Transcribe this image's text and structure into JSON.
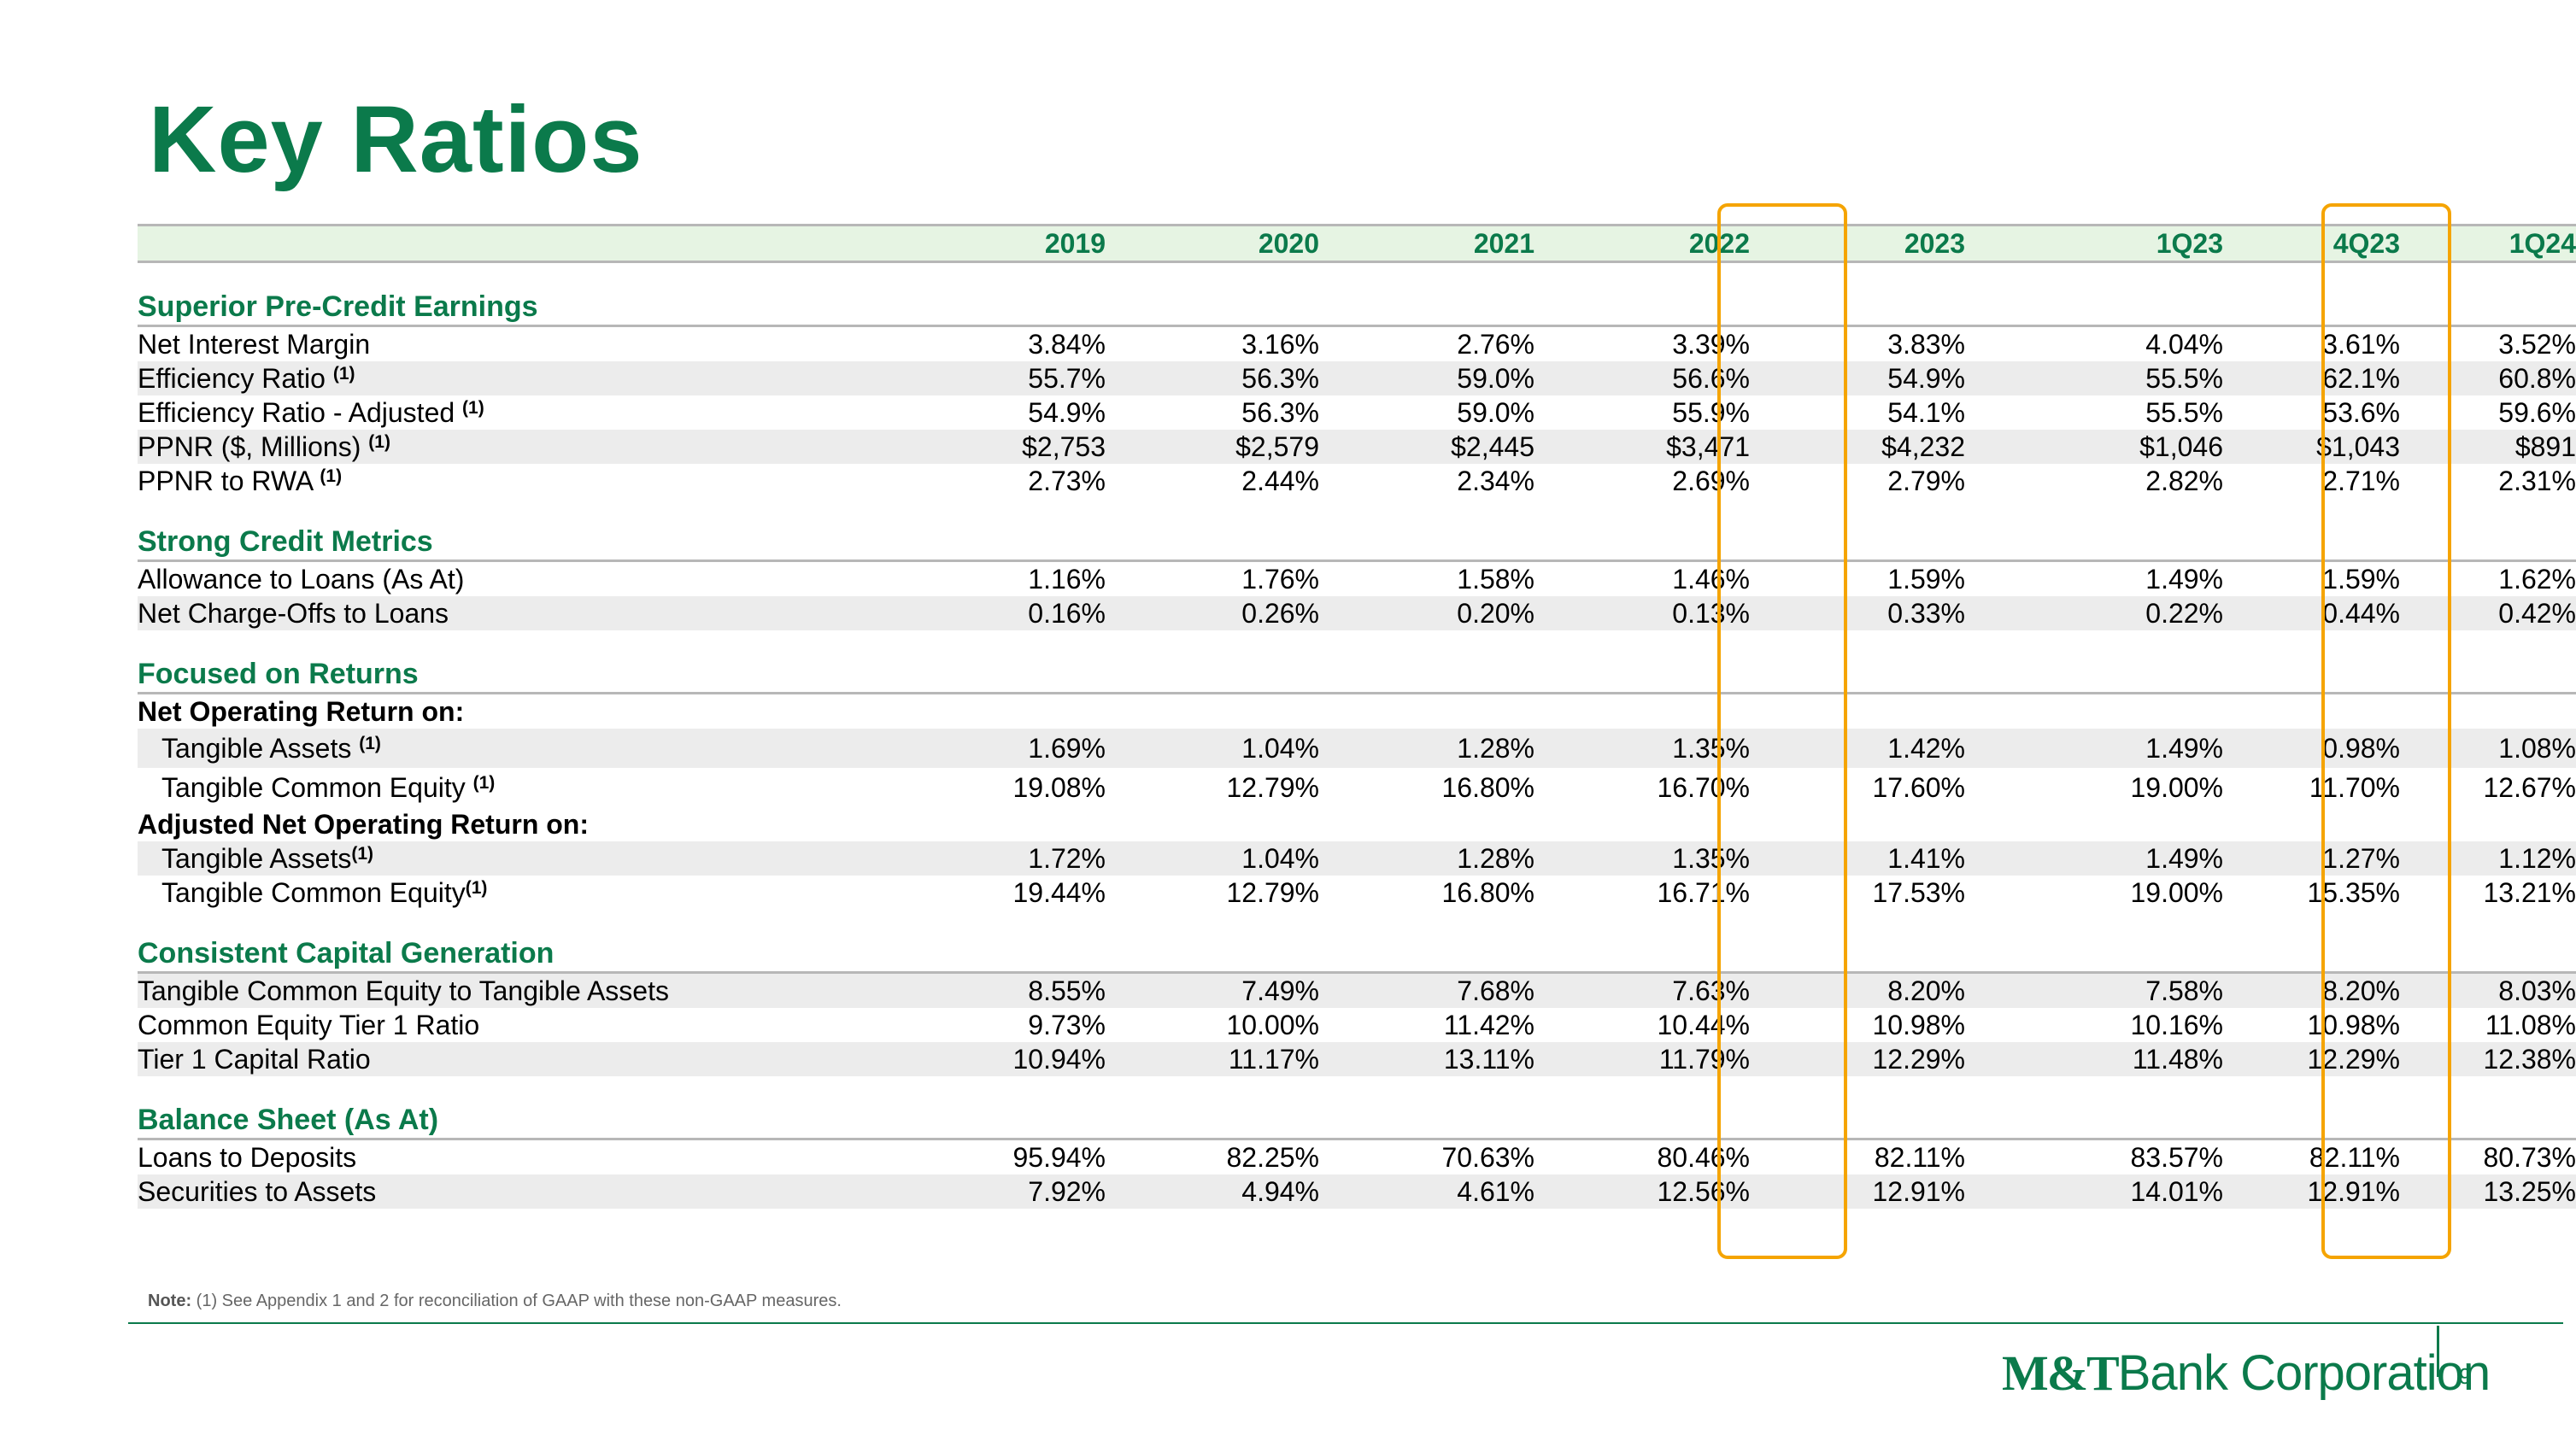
{
  "title": "Key Ratios",
  "columns": [
    "2019",
    "2020",
    "2021",
    "2022",
    "2023",
    "1Q23",
    "4Q23",
    "1Q24"
  ],
  "sections": {
    "pre_credit": {
      "heading": "Superior Pre-Credit Earnings",
      "rows": [
        {
          "label": "Net Interest Margin",
          "note": "",
          "values": [
            "3.84%",
            "3.16%",
            "2.76%",
            "3.39%",
            "3.83%",
            "4.04%",
            "3.61%",
            "3.52%"
          ]
        },
        {
          "label": "Efficiency Ratio ",
          "note": "(1)",
          "values": [
            "55.7%",
            "56.3%",
            "59.0%",
            "56.6%",
            "54.9%",
            "55.5%",
            "62.1%",
            "60.8%"
          ]
        },
        {
          "label": "Efficiency Ratio - Adjusted ",
          "note": "(1)",
          "values": [
            "54.9%",
            "56.3%",
            "59.0%",
            "55.9%",
            "54.1%",
            "55.5%",
            "53.6%",
            "59.6%"
          ]
        },
        {
          "label": "PPNR ($, Millions) ",
          "note": "(1)",
          "values": [
            "$2,753",
            "$2,579",
            "$2,445",
            "$3,471",
            "$4,232",
            "$1,046",
            "$1,043",
            "$891"
          ]
        },
        {
          "label": "PPNR to RWA ",
          "note": "(1)",
          "values": [
            "2.73%",
            "2.44%",
            "2.34%",
            "2.69%",
            "2.79%",
            "2.82%",
            "2.71%",
            "2.31%"
          ]
        }
      ]
    },
    "credit": {
      "heading": "Strong Credit Metrics",
      "rows": [
        {
          "label": "Allowance to Loans (As At)",
          "note": "",
          "values": [
            "1.16%",
            "1.76%",
            "1.58%",
            "1.46%",
            "1.59%",
            "1.49%",
            "1.59%",
            "1.62%"
          ]
        },
        {
          "label": "Net Charge-Offs to Loans",
          "note": "",
          "values": [
            "0.16%",
            "0.26%",
            "0.20%",
            "0.13%",
            "0.33%",
            "0.22%",
            "0.44%",
            "0.42%"
          ]
        }
      ]
    },
    "returns": {
      "heading": "Focused on Returns",
      "sub1": "Net Operating Return on:",
      "sub2": "Adjusted Net Operating Return on:",
      "rows": [
        {
          "label": "Tangible Assets ",
          "note": "(1)",
          "values": [
            "1.69%",
            "1.04%",
            "1.28%",
            "1.35%",
            "1.42%",
            "1.49%",
            "0.98%",
            "1.08%"
          ]
        },
        {
          "label": "Tangible Common Equity ",
          "note": "(1)",
          "values": [
            "19.08%",
            "12.79%",
            "16.80%",
            "16.70%",
            "17.60%",
            "19.00%",
            "11.70%",
            "12.67%"
          ]
        },
        {
          "label": "Tangible Assets",
          "note": "(1)",
          "values": [
            "1.72%",
            "1.04%",
            "1.28%",
            "1.35%",
            "1.41%",
            "1.49%",
            "1.27%",
            "1.12%"
          ]
        },
        {
          "label": "Tangible Common Equity",
          "note": "(1)",
          "values": [
            "19.44%",
            "12.79%",
            "16.80%",
            "16.71%",
            "17.53%",
            "19.00%",
            "15.35%",
            "13.21%"
          ]
        }
      ]
    },
    "capital": {
      "heading": "Consistent Capital Generation",
      "rows": [
        {
          "label": "Tangible Common Equity to Tangible Assets",
          "note": "",
          "values": [
            "8.55%",
            "7.49%",
            "7.68%",
            "7.63%",
            "8.20%",
            "7.58%",
            "8.20%",
            "8.03%"
          ]
        },
        {
          "label": "Common Equity Tier 1 Ratio",
          "note": "",
          "values": [
            "9.73%",
            "10.00%",
            "11.42%",
            "10.44%",
            "10.98%",
            "10.16%",
            "10.98%",
            "11.08%"
          ]
        },
        {
          "label": "Tier 1 Capital Ratio",
          "note": "",
          "values": [
            "10.94%",
            "11.17%",
            "13.11%",
            "11.79%",
            "12.29%",
            "11.48%",
            "12.29%",
            "12.38%"
          ]
        }
      ]
    },
    "balance": {
      "heading": "Balance Sheet (As At)",
      "rows": [
        {
          "label": "Loans to Deposits",
          "note": "",
          "values": [
            "95.94%",
            "82.25%",
            "70.63%",
            "80.46%",
            "82.11%",
            "83.57%",
            "82.11%",
            "80.73%"
          ]
        },
        {
          "label": "Securities to Assets",
          "note": "",
          "values": [
            "7.92%",
            "4.94%",
            "4.61%",
            "12.56%",
            "12.91%",
            "14.01%",
            "12.91%",
            "13.25%"
          ]
        }
      ]
    }
  },
  "footnote": {
    "label": "Note:",
    "text": " (1) See Appendix 1 and 2 for reconciliation of GAAP with these non-GAAP measures."
  },
  "footer": {
    "logo_mark": "M&T",
    "logo_text": "Bank Corporation",
    "page_number": "9"
  },
  "colors": {
    "brand_green": "#0b7a4b",
    "highlight": "#f5a400",
    "header_fill": "#e6f4e3",
    "row_shade": "#ececec"
  }
}
